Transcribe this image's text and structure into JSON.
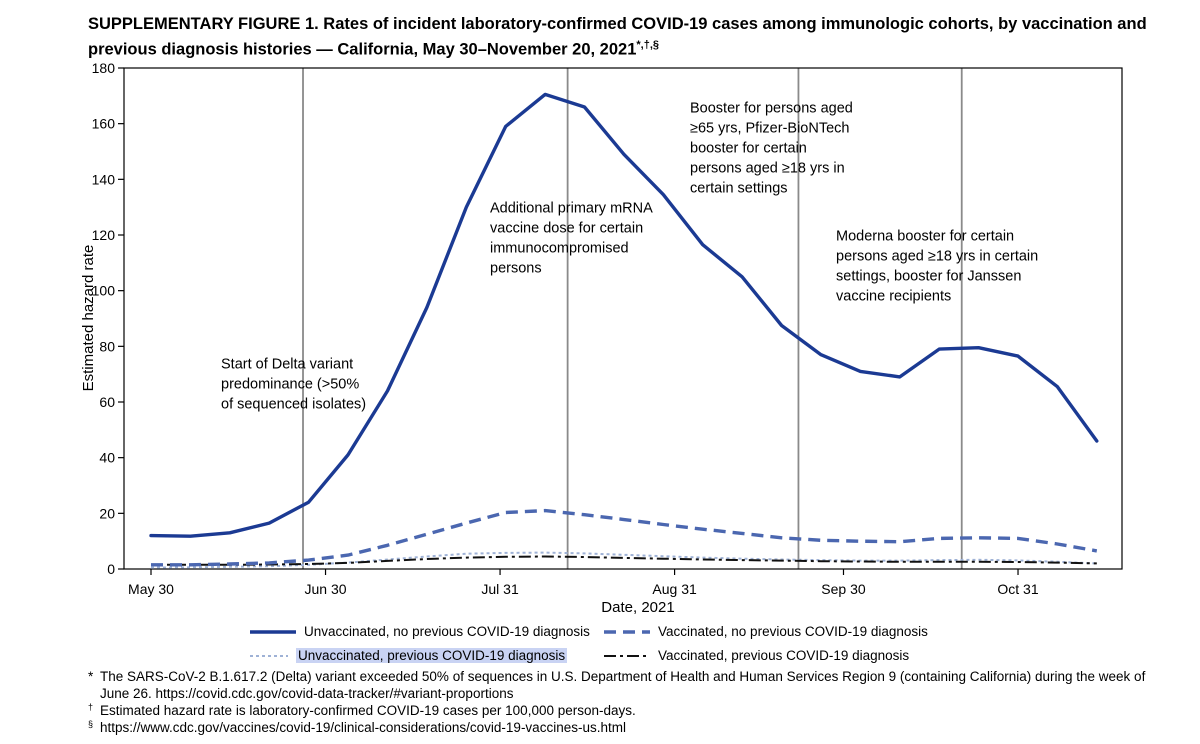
{
  "figure": {
    "title": "SUPPLEMENTARY FIGURE 1. Rates of incident laboratory-confirmed COVID-19 cases among immunologic cohorts, by vaccination and previous diagnosis histories — California, May 30–November 20, 2021",
    "title_marks": "*,†,§"
  },
  "chart_data": {
    "type": "line",
    "xlabel": "Date, 2021",
    "ylabel": "Estimated hazard rate",
    "ylim": [
      0,
      180
    ],
    "yticks": [
      0,
      20,
      40,
      60,
      80,
      100,
      120,
      140,
      160,
      180
    ],
    "xlim": [
      "2021-05-30",
      "2021-11-20"
    ],
    "xticks": [
      {
        "date": "2021-05-30",
        "label": "May 30"
      },
      {
        "date": "2021-06-30",
        "label": "Jun 30"
      },
      {
        "date": "2021-07-31",
        "label": "Jul 31"
      },
      {
        "date": "2021-08-31",
        "label": "Aug 31"
      },
      {
        "date": "2021-09-30",
        "label": "Sep 30"
      },
      {
        "date": "2021-10-31",
        "label": "Oct 31"
      }
    ],
    "x": [
      "2021-05-30",
      "2021-06-06",
      "2021-06-13",
      "2021-06-20",
      "2021-06-27",
      "2021-07-04",
      "2021-07-11",
      "2021-07-18",
      "2021-07-25",
      "2021-08-01",
      "2021-08-08",
      "2021-08-15",
      "2021-08-22",
      "2021-08-29",
      "2021-09-05",
      "2021-09-12",
      "2021-09-19",
      "2021-09-26",
      "2021-10-03",
      "2021-10-10",
      "2021-10-17",
      "2021-10-24",
      "2021-10-31",
      "2021-11-07",
      "2021-11-14"
    ],
    "series": [
      {
        "name": "Unvaccinated, no previous COVID-19 diagnosis",
        "color": "#1b3a93",
        "style": "solid",
        "values": [
          12,
          11.8,
          13,
          16.5,
          24,
          41,
          64,
          94,
          130,
          159,
          170.5,
          166,
          149,
          134.5,
          116.5,
          105,
          87.5,
          77,
          71,
          69,
          79,
          79.5,
          76.5,
          65.5,
          46
        ]
      },
      {
        "name": "Vaccinated, no previous COVID-19 diagnosis",
        "color": "#4b67b0",
        "style": "dashed",
        "values": [
          1.5,
          1.5,
          1.8,
          2.2,
          3.2,
          5,
          8.5,
          12.5,
          16.5,
          20.3,
          21,
          19.5,
          17.8,
          16,
          14.3,
          12.8,
          11.2,
          10.3,
          10,
          9.8,
          11,
          11.2,
          11,
          9,
          6.5
        ]
      },
      {
        "name": "Unvaccinated, previous COVID-19 diagnosis",
        "color": "#9fb2d6",
        "style": "dotted",
        "values": [
          0.5,
          0.6,
          0.8,
          1,
          1.5,
          2.3,
          3.4,
          4.5,
          5.5,
          5.8,
          5.9,
          5.6,
          5.1,
          4.6,
          4.1,
          3.7,
          3.4,
          3.2,
          3,
          3,
          3.2,
          3.3,
          3.1,
          2.6,
          2
        ]
      },
      {
        "name": "Vaccinated, previous COVID-19 diagnosis",
        "color": "#111111",
        "style": "dashdot",
        "values": [
          1.5,
          1.5,
          1.5,
          1.6,
          1.8,
          2.2,
          2.9,
          3.6,
          4.1,
          4.4,
          4.5,
          4.3,
          4,
          3.7,
          3.4,
          3.2,
          3,
          2.8,
          2.7,
          2.6,
          2.6,
          2.6,
          2.5,
          2.3,
          2
        ]
      }
    ],
    "annotations": [
      {
        "date": "2021-06-26",
        "label_anchor_y": 72,
        "lines": [
          "Start of Delta variant",
          "predominance (>50%",
          "of sequenced isolates)"
        ]
      },
      {
        "date": "2021-08-12",
        "label_anchor_y": 128,
        "lines": [
          "Additional primary mRNA",
          "vaccine dose for certain",
          "immunocompromised",
          "persons"
        ]
      },
      {
        "date": "2021-09-22",
        "label_anchor_y": 164,
        "lines": [
          "Booster for persons aged",
          "≥65 yrs, Pfizer-BioNTech",
          "booster for certain",
          "persons aged ≥18 yrs in",
          "certain settings"
        ]
      },
      {
        "date": "2021-10-21",
        "label_anchor_y": 118,
        "lines": [
          "Moderna booster for certain",
          "persons aged ≥18 yrs in certain",
          "settings, booster for Janssen",
          "vaccine recipients"
        ]
      }
    ],
    "grid": false,
    "legend_position": "bottom"
  },
  "footnotes": [
    {
      "mark": "*",
      "text": "The SARS-CoV-2 B.1.617.2 (Delta) variant exceeded 50% of sequences in U.S. Department of Health and Human Services Region 9 (containing California) during the week of June 26. https://covid.cdc.gov/covid-data-tracker/#variant-proportions"
    },
    {
      "mark": "†",
      "text": "Estimated hazard rate is laboratory-confirmed COVID-19 cases per 100,000 person-days."
    },
    {
      "mark": "§",
      "text": "https://www.cdc.gov/vaccines/covid-19/clinical-considerations/covid-19-vaccines-us.html"
    }
  ]
}
